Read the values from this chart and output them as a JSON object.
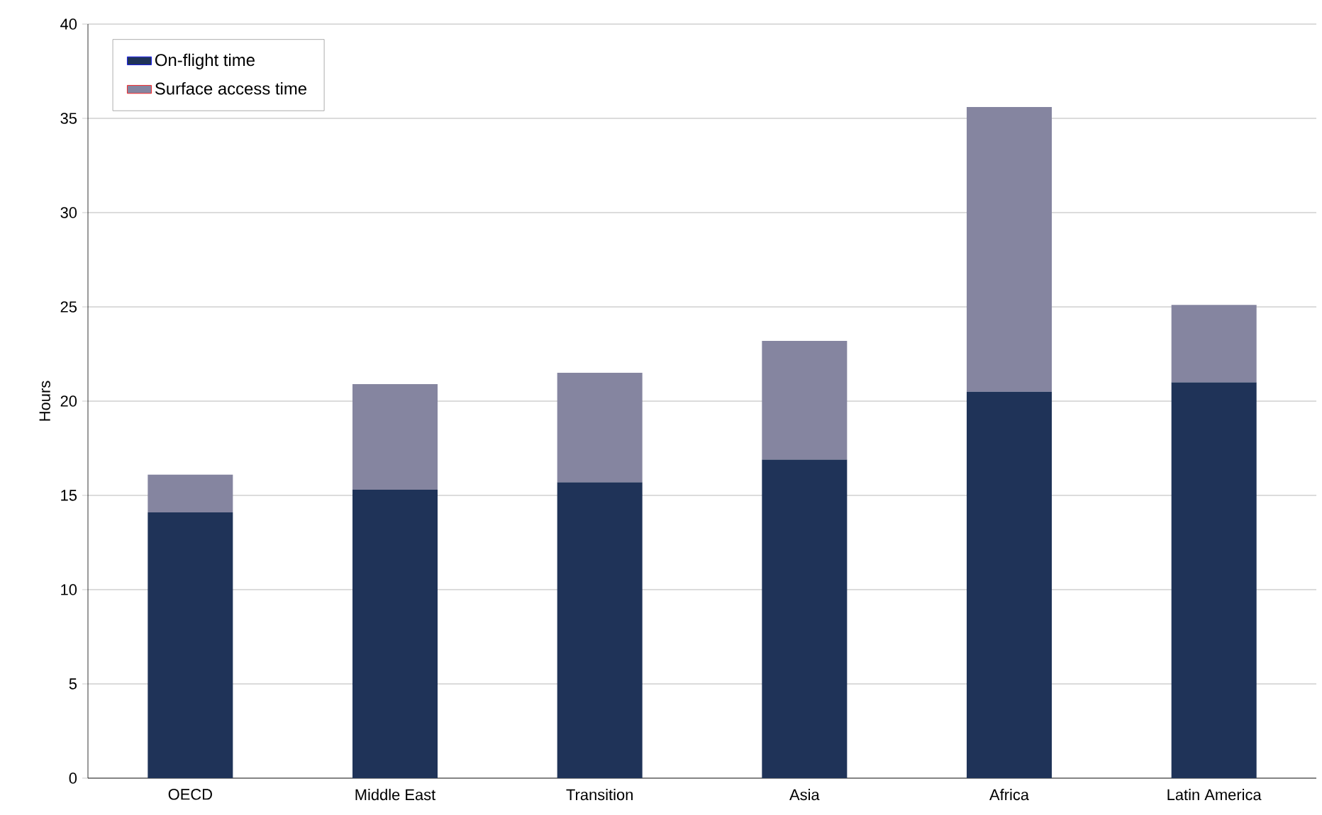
{
  "chart_data": {
    "type": "bar",
    "stacked": true,
    "ylabel": "Hours",
    "categories": [
      "OECD",
      "Middle East",
      "Transition",
      "Asia",
      "Africa",
      "Latin America"
    ],
    "series": [
      {
        "name": "On-flight time",
        "color": "#1f3358",
        "values": [
          14.1,
          15.3,
          15.7,
          16.9,
          20.5,
          21.0
        ]
      },
      {
        "name": "Surface access time",
        "color": "#8585a0",
        "values": [
          2.0,
          5.6,
          5.8,
          6.3,
          15.1,
          4.1
        ]
      }
    ],
    "ylim": [
      0,
      40
    ],
    "yticks": [
      0,
      5,
      10,
      15,
      20,
      25,
      30,
      35,
      40
    ],
    "grid": "y",
    "legend": "top left"
  }
}
